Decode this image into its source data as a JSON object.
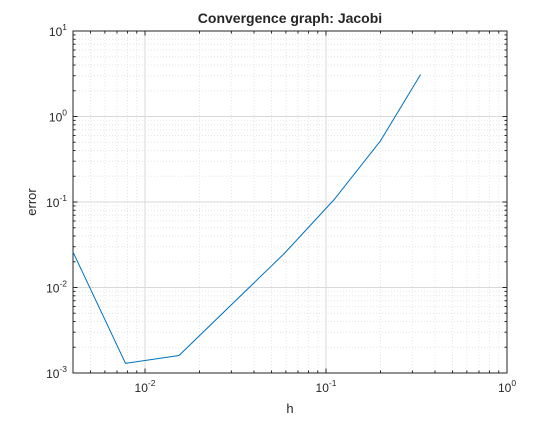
{
  "chart_data": {
    "type": "line",
    "title": "Convergence graph: Jacobi",
    "xlabel": "h",
    "ylabel": "error",
    "xscale": "log",
    "yscale": "log",
    "xlim": [
      0.004,
      1
    ],
    "ylim": [
      0.001,
      10
    ],
    "grid": true,
    "minor_grid": true,
    "x_ticks": [
      {
        "value": 0.01,
        "base": "10",
        "exp": "-2"
      },
      {
        "value": 0.1,
        "base": "10",
        "exp": "-1"
      },
      {
        "value": 1,
        "base": "10",
        "exp": "0"
      }
    ],
    "y_ticks": [
      {
        "value": 0.001,
        "base": "10",
        "exp": "-3"
      },
      {
        "value": 0.01,
        "base": "10",
        "exp": "-2"
      },
      {
        "value": 0.1,
        "base": "10",
        "exp": "-1"
      },
      {
        "value": 1,
        "base": "10",
        "exp": "0"
      },
      {
        "value": 10,
        "base": "10",
        "exp": "1"
      }
    ],
    "series": [
      {
        "color": "#0072bd",
        "x": [
          0.004,
          0.0078,
          0.0154,
          0.0588,
          0.111,
          0.2,
          0.333
        ],
        "y": [
          0.026,
          0.0013,
          0.0016,
          0.025,
          0.107,
          0.52,
          3.1
        ]
      }
    ]
  }
}
